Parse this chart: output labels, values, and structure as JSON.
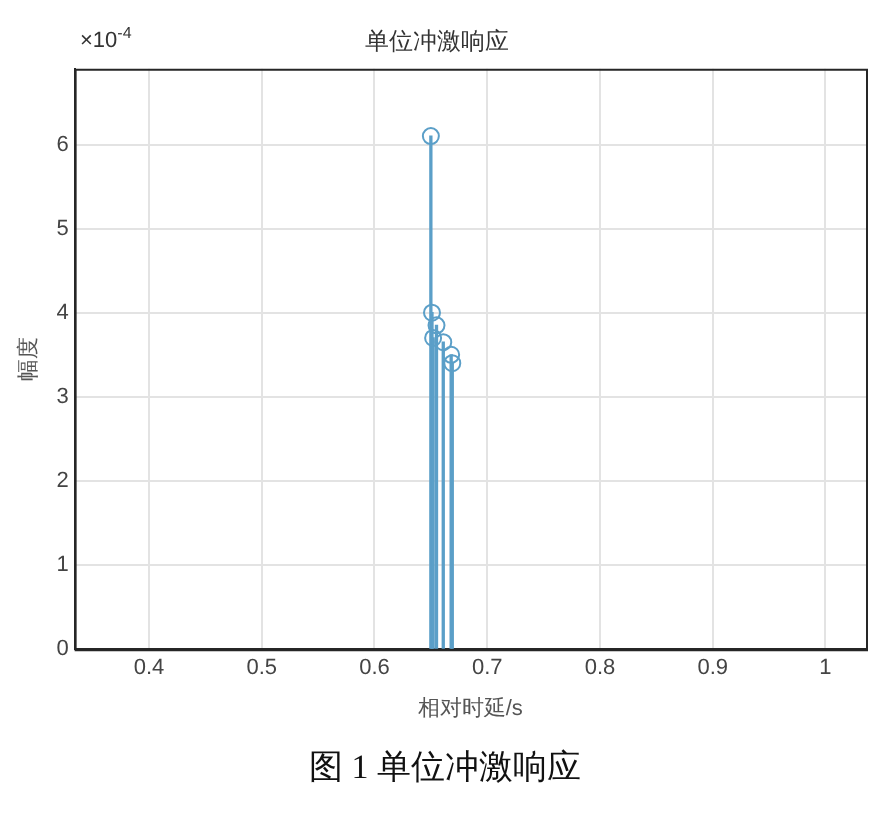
{
  "chart_data": {
    "type": "lollipop",
    "title": "单位冲激响应",
    "xlabel": "相对时延/s",
    "ylabel": "幅度",
    "x": [
      0.65,
      0.651,
      0.652,
      0.655,
      0.661,
      0.668,
      0.669
    ],
    "values": [
      6.1,
      4.0,
      3.7,
      3.85,
      3.65,
      3.5,
      3.4
    ],
    "color": "#5b9fc8",
    "marker": "circle",
    "xlim": [
      0.334,
      1.036
    ],
    "xticks": [
      0.4,
      0.5,
      0.6,
      0.7,
      0.8,
      0.9,
      1
    ],
    "ylim": [
      0,
      6.9
    ],
    "yticks": [
      0,
      1,
      2,
      3,
      4,
      5,
      6
    ],
    "grid": true,
    "annotations": [
      "×10$^{-4}$",
      "图 1 单位冲激响应"
    ]
  }
}
